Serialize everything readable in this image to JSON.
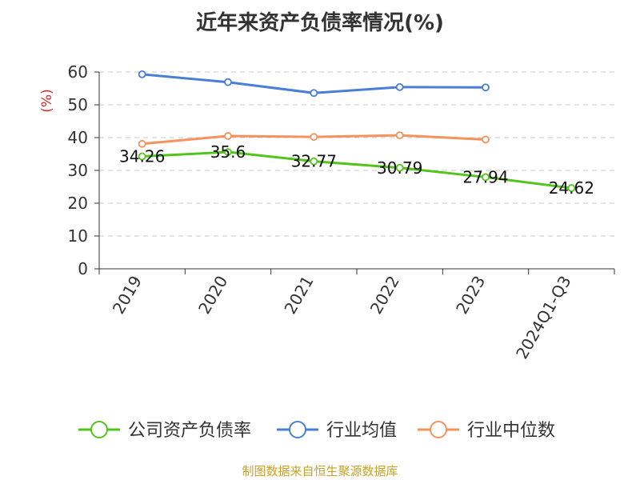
{
  "title": "近年来资产负债率情况(%)",
  "source": "制图数据来自恒生聚源数据库",
  "chart_data": {
    "type": "line",
    "ylabel": "(%)",
    "ylim": [
      0,
      60
    ],
    "yticks": [
      0,
      10,
      20,
      30,
      40,
      50,
      60
    ],
    "grid": true,
    "legend_position": "bottom",
    "categories": [
      "2019",
      "2020",
      "2021",
      "2022",
      "2023",
      "2024Q1-Q3"
    ],
    "series": [
      {
        "name": "公司资产负债率",
        "color": "#52c41a",
        "values": [
          34.26,
          35.6,
          32.77,
          30.79,
          27.94,
          24.62
        ],
        "labels": [
          "34.26",
          "35.6",
          "32.77",
          "30.79",
          "27.94",
          "24.62"
        ]
      },
      {
        "name": "行业均值",
        "color": "#4a7fd6",
        "values": [
          59.3,
          56.9,
          53.6,
          55.4,
          55.3,
          null
        ]
      },
      {
        "name": "行业中位数",
        "color": "#f5925e",
        "values": [
          38.1,
          40.5,
          40.2,
          40.7,
          39.4,
          null
        ]
      }
    ]
  }
}
